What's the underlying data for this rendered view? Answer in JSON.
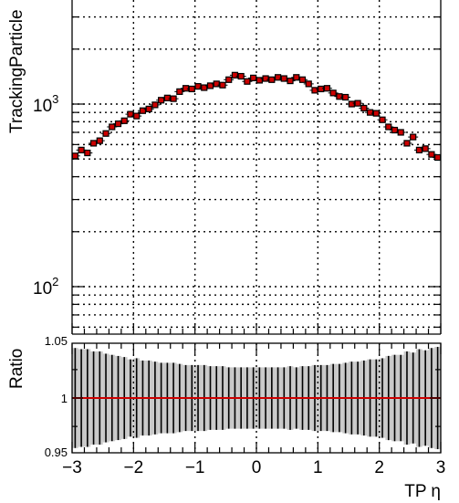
{
  "chart_data": [
    {
      "type": "scatter",
      "panel": "main",
      "ylabel": "TrackingParticle",
      "xlabel": "",
      "yscale": "log",
      "xlim": [
        -3,
        3
      ],
      "ylim": [
        50,
        5000
      ],
      "grid": true,
      "y_tick_labels": [
        {
          "base": "10",
          "exp": "2",
          "value": 100
        },
        {
          "base": "10",
          "exp": "3",
          "value": 1000
        }
      ],
      "series": [
        {
          "color_marker": "#cc0000",
          "color_outline": "#000000",
          "x": [
            -2.95,
            -2.85,
            -2.75,
            -2.65,
            -2.55,
            -2.45,
            -2.35,
            -2.25,
            -2.15,
            -2.05,
            -1.95,
            -1.85,
            -1.75,
            -1.65,
            -1.55,
            -1.45,
            -1.35,
            -1.25,
            -1.15,
            -1.05,
            -0.95,
            -0.85,
            -0.75,
            -0.65,
            -0.55,
            -0.45,
            -0.35,
            -0.25,
            -0.15,
            -0.05,
            0.05,
            0.15,
            0.25,
            0.35,
            0.45,
            0.55,
            0.65,
            0.75,
            0.85,
            0.95,
            1.05,
            1.15,
            1.25,
            1.35,
            1.45,
            1.55,
            1.65,
            1.75,
            1.85,
            1.95,
            2.05,
            2.15,
            2.25,
            2.35,
            2.45,
            2.55,
            2.65,
            2.75,
            2.85,
            2.95
          ],
          "y": [
            520,
            560,
            540,
            610,
            630,
            690,
            750,
            780,
            810,
            880,
            860,
            920,
            940,
            990,
            1050,
            1080,
            1070,
            1170,
            1220,
            1210,
            1250,
            1230,
            1260,
            1290,
            1270,
            1360,
            1440,
            1420,
            1330,
            1390,
            1350,
            1380,
            1360,
            1400,
            1380,
            1340,
            1400,
            1360,
            1290,
            1190,
            1210,
            1220,
            1150,
            1100,
            1090,
            1000,
            1010,
            950,
            900,
            890,
            820,
            750,
            720,
            700,
            610,
            660,
            560,
            570,
            530,
            510
          ]
        }
      ]
    },
    {
      "type": "line",
      "panel": "ratio",
      "ylabel": "Ratio",
      "xlabel": "TP η",
      "xlim": [
        -3,
        3
      ],
      "ylim": [
        0.95,
        1.05
      ],
      "grid": true,
      "y_tick_labels": [
        "0.95",
        "1",
        "1.05"
      ],
      "x_tick_labels": [
        "−3",
        "−2",
        "−1",
        "0",
        "1",
        "2",
        "3"
      ],
      "x": [
        -2.95,
        -2.85,
        -2.75,
        -2.65,
        -2.55,
        -2.45,
        -2.35,
        -2.25,
        -2.15,
        -2.05,
        -1.95,
        -1.85,
        -1.75,
        -1.65,
        -1.55,
        -1.45,
        -1.35,
        -1.25,
        -1.15,
        -1.05,
        -0.95,
        -0.85,
        -0.75,
        -0.65,
        -0.55,
        -0.45,
        -0.35,
        -0.25,
        -0.15,
        -0.05,
        0.05,
        0.15,
        0.25,
        0.35,
        0.45,
        0.55,
        0.65,
        0.75,
        0.85,
        0.95,
        1.05,
        1.15,
        1.25,
        1.35,
        1.45,
        1.55,
        1.65,
        1.75,
        1.85,
        1.95,
        2.05,
        2.15,
        2.25,
        2.35,
        2.45,
        2.55,
        2.65,
        2.75,
        2.85,
        2.95
      ],
      "ratio": 1.0,
      "err": [
        0.044,
        0.043,
        0.043,
        0.041,
        0.041,
        0.039,
        0.038,
        0.037,
        0.036,
        0.034,
        0.035,
        0.033,
        0.033,
        0.032,
        0.031,
        0.031,
        0.031,
        0.03,
        0.029,
        0.029,
        0.029,
        0.029,
        0.028,
        0.028,
        0.028,
        0.027,
        0.027,
        0.027,
        0.027,
        0.027,
        0.027,
        0.027,
        0.027,
        0.027,
        0.027,
        0.028,
        0.027,
        0.028,
        0.028,
        0.029,
        0.029,
        0.029,
        0.03,
        0.03,
        0.031,
        0.032,
        0.032,
        0.033,
        0.034,
        0.034,
        0.035,
        0.037,
        0.038,
        0.038,
        0.041,
        0.04,
        0.043,
        0.042,
        0.044,
        0.045
      ],
      "colors": {
        "ratio_line": "#cc0000",
        "band_fill": "#c8c8c8",
        "err_bar": "#000000"
      }
    }
  ]
}
